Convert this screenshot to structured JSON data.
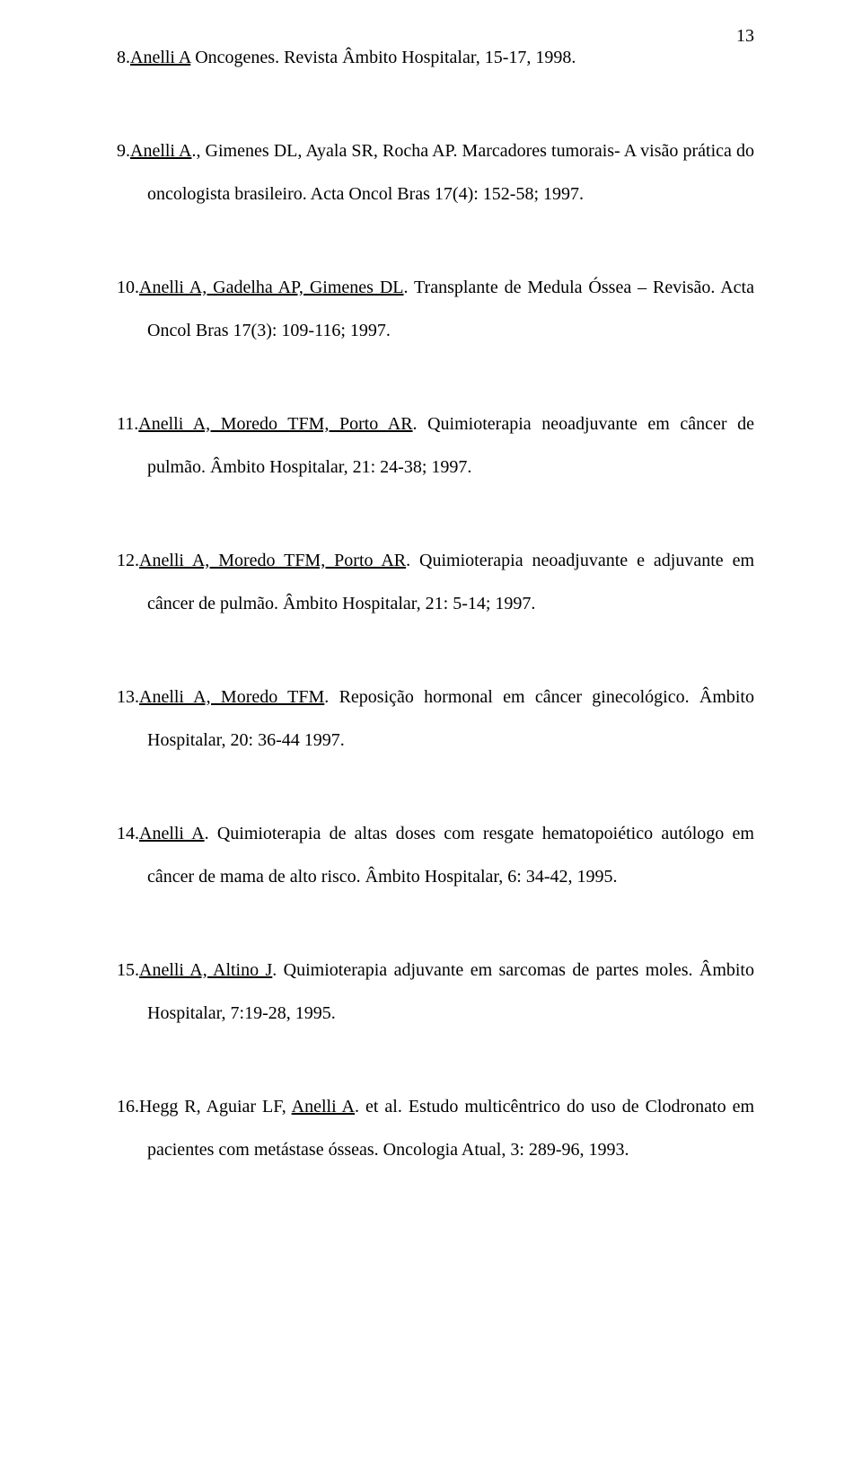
{
  "page_number": "13",
  "text_color": "#000000",
  "background_color": "#ffffff",
  "font_family": "Times New Roman",
  "body_fontsize_pt": 15,
  "line_height": 2.4,
  "entries": [
    {
      "num": "8.",
      "author_u": "Anelli A",
      "rest": " Oncogenes. Revista Âmbito Hospitalar, 15-17, 1998."
    },
    {
      "num": "9.",
      "author_u": "Anelli A",
      "rest": "., Gimenes DL, Ayala SR, Rocha AP. Marcadores tumorais- A visão prática do oncologista brasileiro. Acta Oncol Bras 17(4): 152-58; 1997."
    },
    {
      "num": "10.",
      "author_u": "Anelli A, Gadelha AP, Gimenes DL",
      "rest": ".  Transplante de Medula Óssea – Revisão. Acta Oncol Bras 17(3): 109-116; 1997."
    },
    {
      "num": "11.",
      "author_u": "Anelli A, Moredo TFM, Porto AR",
      "rest": ". Quimioterapia neoadjuvante em câncer de pulmão. Âmbito Hospitalar, 21: 24-38; 1997."
    },
    {
      "num": "12.",
      "author_u": "Anelli A, Moredo TFM, Porto AR",
      "rest": ". Quimioterapia neoadjuvante e adjuvante em câncer de pulmão. Âmbito Hospitalar, 21: 5-14; 1997."
    },
    {
      "num": "13.",
      "author_u": "Anelli A, Moredo TFM",
      "rest": ".  Reposição hormonal em câncer ginecológico. Âmbito Hospitalar, 20: 36-44 1997."
    },
    {
      "num": "14.",
      "author_u": "Anelli A",
      "rest": ". Quimioterapia de altas doses com resgate hematopoiético autólogo em câncer de mama de alto risco. Âmbito Hospitalar, 6: 34-42, 1995."
    },
    {
      "num": "15.",
      "author_u": "Anelli A, Altino J",
      "rest": ". Quimioterapia adjuvante em sarcomas de partes moles. Âmbito Hospitalar, 7:19-28, 1995."
    },
    {
      "num": "16.",
      "author_pre": "Hegg R, Aguiar LF, ",
      "author_u": "Anelli A",
      "rest": ". et al. Estudo multicêntrico do uso de Clodronato em pacientes com metástase ósseas. Oncologia Atual, 3: 289-96, 1993."
    }
  ]
}
